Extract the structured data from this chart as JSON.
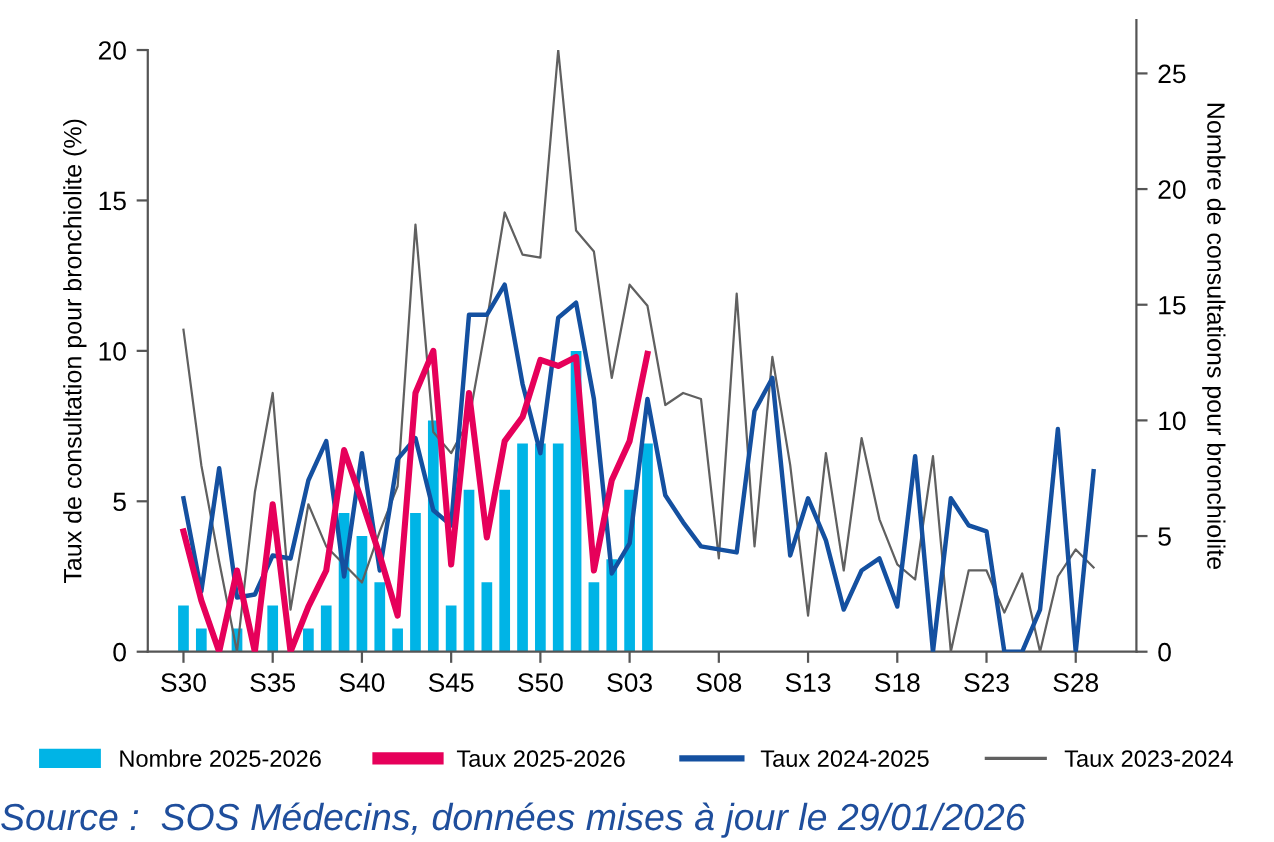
{
  "chart_data": {
    "type": "bar",
    "ylabel": "Taux de consultation pour bronchiolite (%)",
    "y2label": "Nombre de consultations pour bronchiolite",
    "categories": [
      "S30",
      null,
      null,
      null,
      null,
      "S35",
      null,
      null,
      null,
      null,
      "S40",
      null,
      null,
      null,
      null,
      "S45",
      null,
      null,
      null,
      null,
      "S50",
      null,
      null,
      null,
      null,
      "S03",
      null,
      null,
      null,
      null,
      "S08",
      null,
      null,
      null,
      null,
      "S13",
      null,
      null,
      null,
      null,
      "S18",
      null,
      null,
      null,
      null,
      "S23",
      null,
      null,
      null,
      null,
      "S28",
      null
    ],
    "ylim": [
      0,
      20
    ],
    "yticks": [
      0,
      5,
      10,
      15,
      20
    ],
    "y2lim": [
      0,
      27.3
    ],
    "y2ticks": [
      0,
      5,
      10,
      15,
      20,
      25
    ],
    "series": [
      {
        "name": "Nombre 2025-2026",
        "axis": "y2",
        "color": "#00b4e6",
        "values": [
          2,
          1,
          0,
          1,
          0,
          2,
          0,
          1,
          2,
          6,
          5,
          3,
          1,
          6,
          10,
          2,
          7,
          3,
          7,
          9,
          9,
          9,
          13,
          3,
          4,
          7,
          9,
          null,
          null,
          null,
          null,
          null,
          null,
          null,
          null,
          null,
          null,
          null,
          null,
          null,
          null,
          null,
          null,
          null,
          null,
          null,
          null,
          null,
          null,
          null,
          null,
          null
        ]
      },
      {
        "name": "Taux 2025-2026",
        "type": "line",
        "color": "#e6005a",
        "values": [
          4.0,
          1.7,
          0,
          2.7,
          0,
          4.9,
          0,
          1.5,
          2.7,
          6.7,
          5.0,
          3.2,
          1.2,
          8.6,
          10.0,
          2.9,
          8.6,
          3.8,
          7.0,
          7.8,
          9.7,
          9.5,
          9.8,
          2.7,
          5.7,
          7.0,
          9.9,
          null,
          null,
          null,
          null,
          null,
          null,
          null,
          null,
          null,
          null,
          null,
          null,
          null,
          null,
          null,
          null,
          null,
          null,
          null,
          null,
          null,
          null,
          null,
          null,
          null
        ]
      },
      {
        "name": "Taux 2024-2025",
        "type": "line",
        "color": "#1450a0",
        "values": [
          5.1,
          2.0,
          6.1,
          1.8,
          1.9,
          3.2,
          3.1,
          5.7,
          7.0,
          2.5,
          6.6,
          2.7,
          6.4,
          7.1,
          4.7,
          4.2,
          11.2,
          11.2,
          12.2,
          8.9,
          6.6,
          11.1,
          11.6,
          8.4,
          2.6,
          3.6,
          8.4,
          5.2,
          4.3,
          3.5,
          3.4,
          3.3,
          8.0,
          9.1,
          3.2,
          5.1,
          3.7,
          1.4,
          2.7,
          3.1,
          1.5,
          6.5,
          0,
          5.1,
          4.2,
          4.0,
          0,
          0,
          1.4,
          7.4,
          0,
          6.0
        ]
      },
      {
        "name": "Taux 2023-2024",
        "type": "line",
        "color": "#606060",
        "values": [
          10.7,
          6.2,
          3.0,
          0,
          5.3,
          8.6,
          1.4,
          4.9,
          3.5,
          2.9,
          2.3,
          4.0,
          5.5,
          14.2,
          7.3,
          6.6,
          7.7,
          11.0,
          14.6,
          13.2,
          13.1,
          20.0,
          14.0,
          13.3,
          9.1,
          12.2,
          11.5,
          8.2,
          8.6,
          8.4,
          3.1,
          11.9,
          3.5,
          9.8,
          6.2,
          1.2,
          6.6,
          2.7,
          7.1,
          4.4,
          2.9,
          2.4,
          6.5,
          0,
          2.7,
          2.7,
          1.3,
          2.6,
          0,
          2.5,
          3.4,
          2.8
        ]
      }
    ],
    "legend": "bottom",
    "grid": false,
    "annotations": [
      "Source :  SOS Médecins, données mises à jour le 29/01/2026"
    ]
  }
}
